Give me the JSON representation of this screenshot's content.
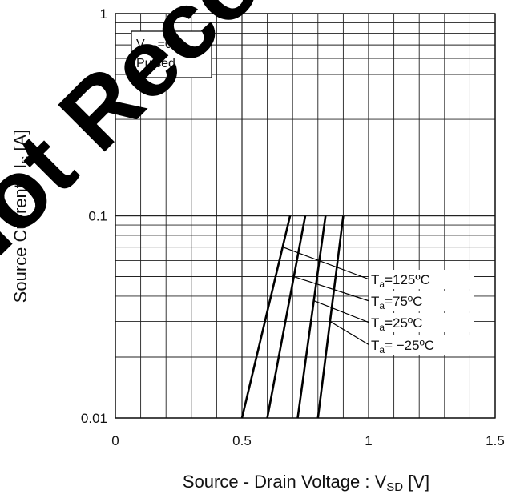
{
  "chart_data": {
    "type": "line",
    "xlabel": "Source - Drain Voltage : V",
    "xlabel_sub": "SD",
    "xlabel_unit": " [V]",
    "ylabel": "Source Current : I",
    "ylabel_sub": "S",
    "ylabel_unit": " [A]",
    "xlim": [
      0,
      1.5
    ],
    "ylim": [
      0.01,
      1
    ],
    "yscale": "log",
    "grid": true,
    "x_ticks": [
      {
        "value": 0,
        "label": "0"
      },
      {
        "value": 0.5,
        "label": "0.5"
      },
      {
        "value": 1,
        "label": "1"
      },
      {
        "value": 1.5,
        "label": "1.5"
      }
    ],
    "y_ticks": [
      {
        "value": 0.01,
        "label": "0.01"
      },
      {
        "value": 0.1,
        "label": "0.1"
      },
      {
        "value": 1,
        "label": "1"
      }
    ],
    "annotation": {
      "line1_main": "V",
      "line1_sub": "GS",
      "line1_rest": "=0V",
      "line2": "Pulsed"
    },
    "series": [
      {
        "name": "Ta=125ºC",
        "label_main": "T",
        "label_sub": "a",
        "label_rest": "=125ºC",
        "x": [
          0.5,
          0.69
        ],
        "y": [
          0.01,
          0.1
        ]
      },
      {
        "name": "Ta=75ºC",
        "label_main": "T",
        "label_sub": "a",
        "label_rest": "=75ºC",
        "x": [
          0.6,
          0.75
        ],
        "y": [
          0.01,
          0.1
        ]
      },
      {
        "name": "Ta=25ºC",
        "label_main": "T",
        "label_sub": "a",
        "label_rest": "=25ºC",
        "x": [
          0.72,
          0.83
        ],
        "y": [
          0.01,
          0.1
        ]
      },
      {
        "name": "Ta= −25ºC",
        "label_main": "T",
        "label_sub": "a",
        "label_rest": "= −25ºC",
        "x": [
          0.8,
          0.9
        ],
        "y": [
          0.01,
          0.1
        ]
      }
    ]
  },
  "watermark": "Not Recommended for New Designs"
}
